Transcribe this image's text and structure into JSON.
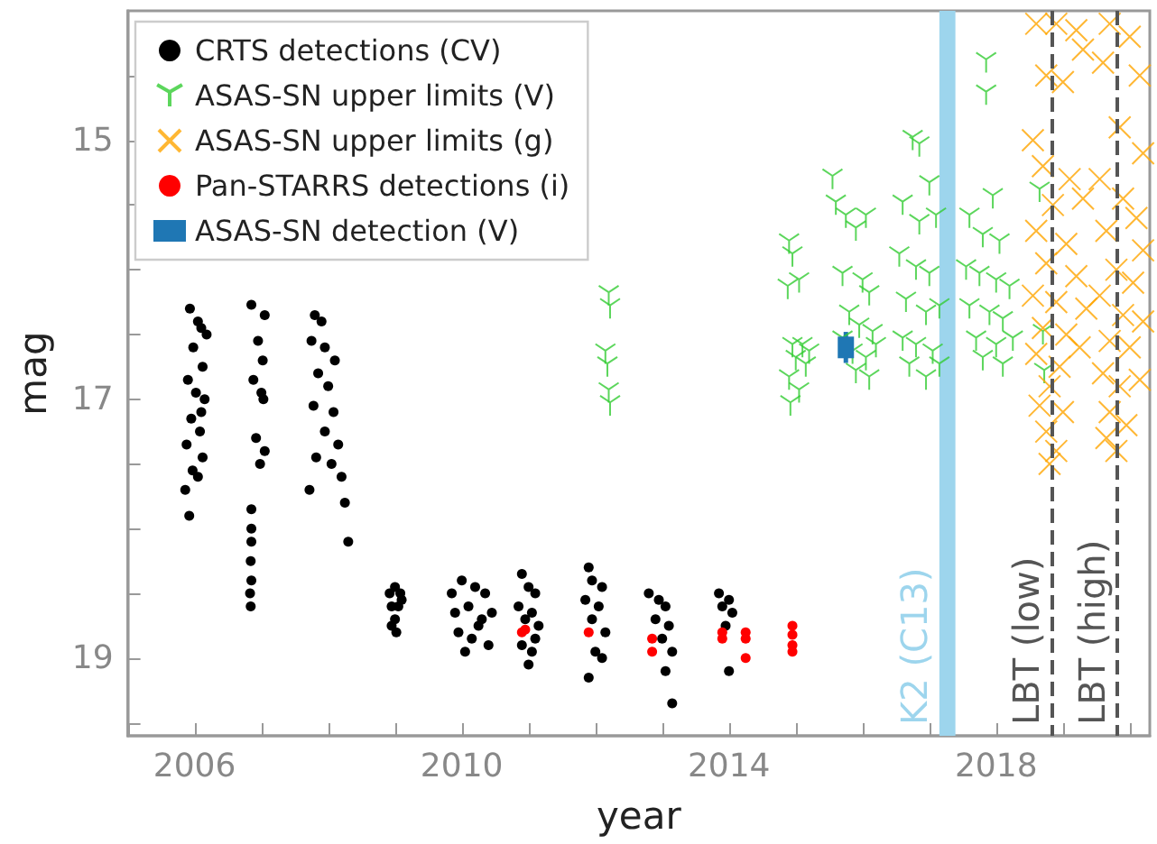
{
  "chart_data": {
    "type": "scatter",
    "xlabel": "year",
    "ylabel": "mag",
    "xlim": [
      2005,
      2020.3
    ],
    "ylim": [
      19.6,
      14.0
    ],
    "xticks": [
      {
        "value": 2005,
        "label": null
      },
      2006,
      {
        "value": 2007,
        "label": null
      },
      {
        "value": 2008,
        "label": null
      },
      {
        "value": 2009,
        "label": null
      },
      2010,
      {
        "value": 2011,
        "label": null
      },
      {
        "value": 2012,
        "label": null
      },
      {
        "value": 2013,
        "label": null
      },
      2014,
      {
        "value": 2015,
        "label": null
      },
      {
        "value": 2016,
        "label": null
      },
      {
        "value": 2017,
        "label": null
      },
      2018,
      {
        "value": 2019,
        "label": null
      },
      {
        "value": 2020,
        "label": null
      }
    ],
    "yticks": [
      {
        "value": 14.5,
        "label": null
      },
      15,
      {
        "value": 15.5,
        "label": null
      },
      {
        "value": 16,
        "label": null
      },
      {
        "value": 16.5,
        "label": null
      },
      17,
      {
        "value": 17.5,
        "label": null
      },
      {
        "value": 18,
        "label": null
      },
      {
        "value": 18.5,
        "label": null
      },
      19,
      {
        "value": 19.5,
        "label": null
      }
    ],
    "grid": false,
    "legend": "top left",
    "bands": [
      {
        "axis": "x",
        "from": 2017.15,
        "to": 2017.39,
        "label": "K2 (C13)",
        "color": "#9dd5ed"
      }
    ],
    "ref_lines": [
      {
        "axis": "x",
        "value": 2018.83,
        "label": "LBT (low)",
        "color": "#555555",
        "line_style": "dashed"
      },
      {
        "axis": "x",
        "value": 2019.81,
        "label": "LBT (high)",
        "color": "#555555",
        "line_style": "dashed"
      }
    ],
    "series": [
      {
        "name": "CRTS detections (CV)",
        "color": "#000000",
        "marker": "circle",
        "x": [
          2005.93,
          2006.05,
          2006.1,
          2005.98,
          2006.12,
          2005.9,
          2006.02,
          2006.15,
          2005.95,
          2006.08,
          2005.88,
          2006.12,
          2005.97,
          2006.05,
          2005.86,
          2005.92,
          2006.18,
          2006.1,
          2006.85,
          2007.05,
          2006.95,
          2007.02,
          2006.88,
          2007.0,
          2006.92,
          2007.05,
          2006.98,
          2006.85,
          2006.85,
          2006.85,
          2006.84,
          2006.85,
          2006.83,
          2006.84,
          2007.03,
          2007.8,
          2007.9,
          2007.75,
          2007.95,
          2008.1,
          2007.85,
          2008.0,
          2007.78,
          2008.08,
          2007.95,
          2008.15,
          2007.82,
          2008.2,
          2007.72,
          2008.25,
          2008.3,
          2008.05,
          2008.92,
          2009.0,
          2009.08,
          2008.95,
          2009.05,
          2009.0,
          2008.95,
          2009.02,
          2009.1,
          2009.85,
          2010.0,
          2010.2,
          2010.35,
          2009.9,
          2010.1,
          2010.3,
          2010.45,
          2009.95,
          2010.15,
          2010.4,
          2010.05,
          2010.25,
          2010.9,
          2011.0,
          2011.1,
          2010.85,
          2011.05,
          2010.95,
          2011.15,
          2010.9,
          2011.05,
          2011.0,
          2011.1,
          2011.9,
          2011.95,
          2012.1,
          2011.85,
          2012.05,
          2011.95,
          2012.15,
          2012.0,
          2012.1,
          2011.9,
          2012.8,
          2012.95,
          2013.05,
          2012.9,
          2013.1,
          2013.0,
          2013.15,
          2013.05,
          2013.15,
          2013.85,
          2014.0,
          2013.9,
          2014.05,
          2013.95,
          2014.0
        ],
        "values": [
          16.3,
          16.4,
          16.45,
          16.6,
          16.75,
          16.85,
          16.95,
          17.0,
          17.15,
          17.25,
          17.35,
          17.45,
          17.55,
          17.6,
          17.7,
          17.9,
          16.5,
          17.1,
          16.27,
          16.35,
          16.55,
          16.7,
          16.85,
          16.95,
          17.3,
          17.4,
          17.5,
          17.85,
          18.0,
          18.1,
          18.25,
          18.4,
          18.5,
          18.6,
          17.0,
          16.35,
          16.4,
          16.55,
          16.6,
          16.7,
          16.8,
          16.9,
          17.05,
          17.1,
          17.25,
          17.35,
          17.45,
          17.6,
          17.7,
          17.8,
          18.1,
          17.5,
          18.5,
          18.45,
          18.5,
          18.6,
          18.6,
          18.7,
          18.75,
          18.8,
          18.55,
          18.5,
          18.4,
          18.45,
          18.5,
          18.65,
          18.6,
          18.7,
          18.65,
          18.8,
          18.85,
          18.9,
          18.95,
          18.75,
          18.35,
          18.45,
          18.5,
          18.6,
          18.65,
          18.7,
          18.75,
          18.9,
          18.95,
          19.05,
          18.85,
          18.3,
          18.4,
          18.45,
          18.55,
          18.6,
          18.7,
          18.8,
          18.95,
          19.0,
          19.15,
          18.5,
          18.55,
          18.6,
          18.7,
          18.75,
          18.85,
          18.95,
          19.1,
          19.35,
          18.5,
          18.55,
          18.6,
          18.65,
          18.75,
          19.1
        ]
      },
      {
        "name": "ASAS-SN upper limits (V)",
        "color": "#33cc33",
        "x": [
          2012.2,
          2012.22,
          2012.15,
          2012.18,
          2012.2,
          2012.22,
          2014.9,
          2014.95,
          2015.05,
          2014.88,
          2015.1,
          2014.95,
          2015.0,
          2015.15,
          2014.9,
          2015.05,
          2014.92,
          2015.2,
          2015.55,
          2015.6,
          2015.75,
          2015.9,
          2016.05,
          2015.7,
          2016.0,
          2016.1,
          2015.8,
          2015.95,
          2016.15,
          2015.7,
          2015.85,
          2016.05,
          2016.2,
          2015.9,
          2016.1,
          2016.75,
          2016.85,
          2017.0,
          2016.6,
          2016.85,
          2017.1,
          2016.55,
          2016.8,
          2017.0,
          2016.65,
          2016.95,
          2017.15,
          2016.6,
          2016.8,
          2017.05,
          2016.7,
          2016.95,
          2017.15,
          2017.85,
          2017.85,
          2017.95,
          2017.6,
          2017.8,
          2018.05,
          2017.55,
          2017.75,
          2018.0,
          2018.2,
          2017.6,
          2017.9,
          2018.1,
          2017.7,
          2018.0,
          2018.25,
          2017.8,
          2018.1,
          2018.65,
          2018.7,
          2018.72
        ],
        "values": [
          16.2,
          16.3,
          16.65,
          16.75,
          16.95,
          17.05,
          15.8,
          15.9,
          16.1,
          16.15,
          16.6,
          16.6,
          16.7,
          16.75,
          16.85,
          16.95,
          17.05,
          16.65,
          15.3,
          15.5,
          15.6,
          15.7,
          15.6,
          16.05,
          16.1,
          16.2,
          16.35,
          16.45,
          16.5,
          16.55,
          16.65,
          16.7,
          16.6,
          16.8,
          16.85,
          15.0,
          15.05,
          15.35,
          15.5,
          15.65,
          15.6,
          15.9,
          16.0,
          16.05,
          16.25,
          16.35,
          16.3,
          16.55,
          16.6,
          16.65,
          16.75,
          16.85,
          16.75,
          14.4,
          14.65,
          15.45,
          15.6,
          15.75,
          15.8,
          16.0,
          16.05,
          16.1,
          16.15,
          16.3,
          16.35,
          16.4,
          16.55,
          16.6,
          16.55,
          16.7,
          16.75,
          15.4,
          16.5,
          16.8
        ]
      },
      {
        "name": "ASAS-SN upper limits (g)",
        "color": "#ffa500",
        "marker": "cross",
        "x": [
          2018.6,
          2018.9,
          2019.2,
          2019.3,
          2018.75,
          2019.0,
          2018.55,
          2018.7,
          2019.1,
          2018.85,
          2019.3,
          2018.6,
          2019.05,
          2018.75,
          2019.2,
          2018.55,
          2018.9,
          2019.35,
          2018.7,
          2019.05,
          2018.6,
          2018.95,
          2019.25,
          2018.8,
          2018.65,
          2019.0,
          2018.75,
          2018.9,
          2018.8,
          2019.7,
          2020.0,
          2019.6,
          2020.15,
          2019.85,
          2020.2,
          2019.55,
          2019.9,
          2020.1,
          2019.65,
          2020.2,
          2019.8,
          2020.05,
          2019.55,
          2019.9,
          2020.2,
          2019.7,
          2020.0,
          2019.6,
          2019.85,
          2020.15,
          2019.7,
          2019.95,
          2019.8,
          2019.65
        ],
        "values": [
          14.1,
          14.1,
          14.15,
          14.3,
          14.5,
          14.55,
          15.0,
          15.2,
          15.3,
          15.5,
          15.45,
          15.7,
          15.8,
          15.95,
          16.05,
          16.2,
          16.25,
          16.3,
          16.45,
          16.5,
          16.65,
          16.75,
          16.6,
          16.9,
          17.05,
          17.1,
          17.25,
          17.4,
          17.5,
          14.1,
          14.2,
          14.4,
          14.5,
          14.9,
          15.1,
          15.3,
          15.45,
          15.6,
          15.7,
          15.85,
          16.0,
          16.1,
          16.2,
          16.35,
          16.4,
          16.55,
          16.6,
          16.8,
          16.9,
          16.85,
          17.1,
          17.2,
          17.4,
          17.3
        ]
      },
      {
        "name": "Pan-STARRS detections (i)",
        "color": "#ff0000",
        "marker": "circle",
        "x": [
          2010.9,
          2010.95,
          2011.9,
          2012.85,
          2012.85,
          2013.9,
          2013.9,
          2014.25,
          2014.25,
          2014.25,
          2014.95,
          2014.95,
          2014.95,
          2014.95
        ],
        "values": [
          18.8,
          18.78,
          18.8,
          18.85,
          18.95,
          18.8,
          18.85,
          18.8,
          18.85,
          19.0,
          18.75,
          18.82,
          18.9,
          18.95
        ]
      },
      {
        "name": "ASAS-SN detection (V)",
        "color": "#1f77b4",
        "marker": "square",
        "x": [
          2015.75
        ],
        "values": [
          16.6
        ],
        "errors": [
          0.12
        ]
      }
    ]
  }
}
